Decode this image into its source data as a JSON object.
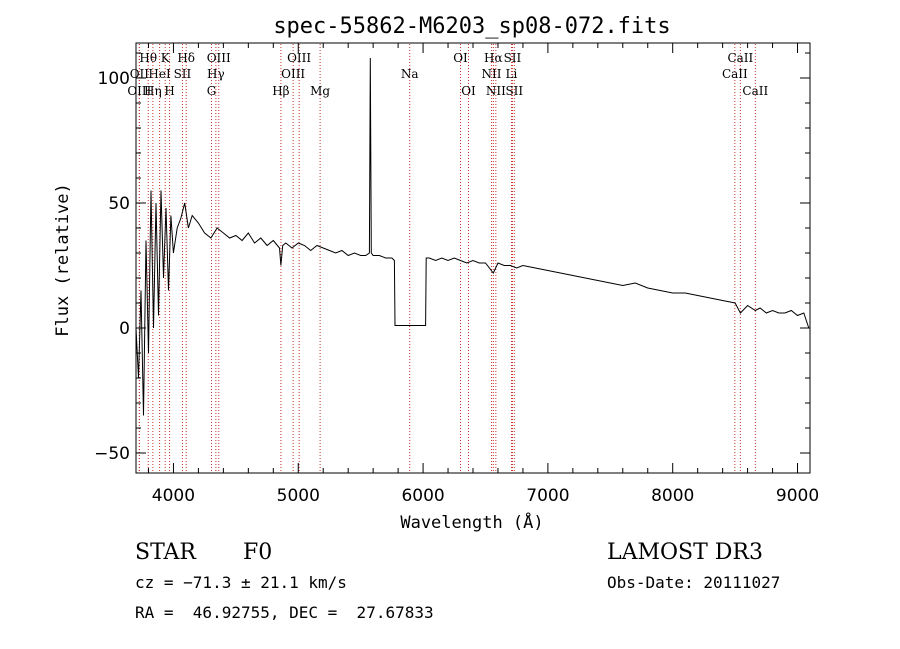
{
  "chart_data": {
    "type": "line",
    "title": "spec-55862-M6203_sp08-072.fits",
    "xlabel": "Wavelength (Å)",
    "ylabel": "Flux (relative)",
    "xlim": [
      3700,
      9100
    ],
    "ylim": [
      -58,
      114
    ],
    "xticks": [
      4000,
      5000,
      6000,
      7000,
      8000,
      9000
    ],
    "yticks": [
      -50,
      0,
      50,
      100
    ],
    "grid": false,
    "line_color": "#000000",
    "marker_color": "#c8322d",
    "series": [
      {
        "name": "flux",
        "x": [
          3700,
          3720,
          3740,
          3760,
          3780,
          3800,
          3820,
          3840,
          3860,
          3880,
          3900,
          3920,
          3940,
          3960,
          3980,
          4000,
          4030,
          4060,
          4090,
          4120,
          4150,
          4200,
          4250,
          4300,
          4350,
          4400,
          4450,
          4500,
          4550,
          4600,
          4650,
          4700,
          4750,
          4800,
          4850,
          4861,
          4875,
          4900,
          4950,
          5000,
          5050,
          5100,
          5150,
          5200,
          5250,
          5300,
          5350,
          5400,
          5450,
          5500,
          5540,
          5570,
          5577,
          5585,
          5600,
          5650,
          5700,
          5750,
          5770,
          5775,
          5800,
          5900,
          6000,
          6020,
          6025,
          6050,
          6100,
          6150,
          6200,
          6250,
          6300,
          6350,
          6400,
          6450,
          6500,
          6563,
          6600,
          6650,
          6700,
          6750,
          6800,
          6900,
          7000,
          7100,
          7200,
          7300,
          7400,
          7500,
          7600,
          7700,
          7800,
          7900,
          8000,
          8100,
          8200,
          8300,
          8400,
          8500,
          8542,
          8600,
          8662,
          8700,
          8750,
          8800,
          8850,
          8900,
          8950,
          9000,
          9050,
          9090
        ],
        "y": [
          0,
          -20,
          15,
          -35,
          35,
          -10,
          55,
          0,
          50,
          5,
          55,
          20,
          48,
          15,
          45,
          30,
          40,
          44,
          50,
          40,
          45,
          42,
          38,
          36,
          40,
          38,
          36,
          37,
          35,
          38,
          34,
          36,
          33,
          35,
          32,
          25,
          33,
          34,
          32,
          34,
          33,
          31,
          33,
          32,
          31,
          30,
          31,
          29,
          30,
          29,
          29,
          30,
          108,
          30,
          29,
          29,
          28,
          28,
          27,
          1,
          1,
          1,
          1,
          1,
          28,
          28,
          27,
          28,
          27,
          28,
          27,
          26,
          27,
          26,
          26,
          22,
          26,
          25,
          25,
          24,
          25,
          24,
          23,
          22,
          21,
          20,
          19,
          18,
          17,
          18,
          16,
          15,
          14,
          14,
          13,
          12,
          11,
          10,
          6,
          9,
          7,
          8,
          6,
          7,
          6,
          6,
          7,
          5,
          6,
          0
        ]
      }
    ],
    "spectral_lines": [
      {
        "label": "Hθ",
        "x": 3798,
        "row": 1
      },
      {
        "label": "OII",
        "x": 3727,
        "row": 2
      },
      {
        "label": "OIII",
        "x": 3727,
        "row": 3
      },
      {
        "label": "K",
        "x": 3934,
        "row": 1
      },
      {
        "label": "HeI",
        "x": 3889,
        "row": 2
      },
      {
        "label": "Hη",
        "x": 3835,
        "row": 3
      },
      {
        "label": "H",
        "x": 3969,
        "row": 3
      },
      {
        "label": "Hδ",
        "x": 4102,
        "row": 1
      },
      {
        "label": "SII",
        "x": 4072,
        "row": 2
      },
      {
        "label": "OIII",
        "x": 4363,
        "row": 1
      },
      {
        "label": "Hγ",
        "x": 4340,
        "row": 2
      },
      {
        "label": "G",
        "x": 4305,
        "row": 3
      },
      {
        "label": "OIII",
        "x": 5007,
        "row": 1
      },
      {
        "label": "OIII",
        "x": 4959,
        "row": 2
      },
      {
        "label": "Hβ",
        "x": 4861,
        "row": 3
      },
      {
        "label": "Mg",
        "x": 5175,
        "row": 3
      },
      {
        "label": "Na",
        "x": 5893,
        "row": 2
      },
      {
        "label": "OI",
        "x": 6300,
        "row": 1
      },
      {
        "label": "OI",
        "x": 6364,
        "row": 3
      },
      {
        "label": "Hα",
        "x": 6563,
        "row": 1
      },
      {
        "label": "SII",
        "x": 6716,
        "row": 1
      },
      {
        "label": "NII",
        "x": 6548,
        "row": 2
      },
      {
        "label": "Li",
        "x": 6708,
        "row": 2
      },
      {
        "label": "NII",
        "x": 6583,
        "row": 3
      },
      {
        "label": "SII",
        "x": 6731,
        "row": 3
      },
      {
        "label": "CaII",
        "x": 8542,
        "row": 1
      },
      {
        "label": "CaII",
        "x": 8498,
        "row": 2
      },
      {
        "label": "CaII",
        "x": 8662,
        "row": 3
      }
    ]
  },
  "info": {
    "object_class": "STAR",
    "subclass": "F0",
    "survey": "LAMOST DR3",
    "redshift": "cz = −71.3 ± 21.1 km/s",
    "obs_date": "Obs-Date: 20111027",
    "coords": "RA =  46.92755, DEC =  27.67833"
  }
}
